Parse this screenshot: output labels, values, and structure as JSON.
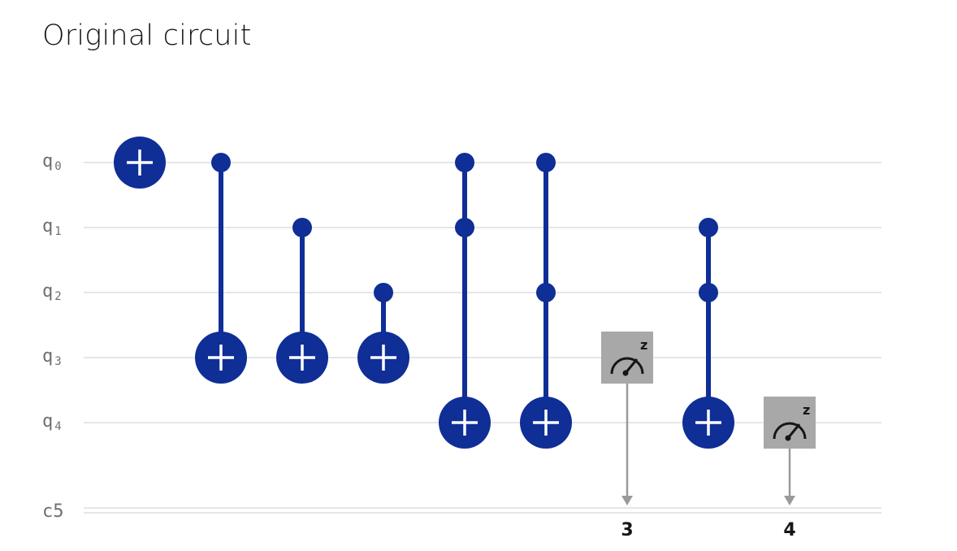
{
  "title": "Original circuit",
  "colors": {
    "gate": "#0f2e96",
    "gate_symbol": "#ffffff",
    "measure_box": "#a8a8a8",
    "measure_arrow": "#9a9a9a",
    "wire": "#dddddd",
    "label": "#6f6f6f"
  },
  "qubits": [
    {
      "prefix": "q",
      "index": "0"
    },
    {
      "prefix": "q",
      "index": "1"
    },
    {
      "prefix": "q",
      "index": "2"
    },
    {
      "prefix": "q",
      "index": "3"
    },
    {
      "prefix": "q",
      "index": "4"
    }
  ],
  "classical_register": {
    "label": "c5"
  },
  "gates": [
    {
      "type": "x",
      "target": 0,
      "controls": []
    },
    {
      "type": "cx",
      "target": 3,
      "controls": [
        0
      ]
    },
    {
      "type": "cx",
      "target": 3,
      "controls": [
        1
      ]
    },
    {
      "type": "cx",
      "target": 3,
      "controls": [
        2
      ]
    },
    {
      "type": "ccx",
      "target": 4,
      "controls": [
        0,
        1
      ]
    },
    {
      "type": "ccx",
      "target": 4,
      "controls": [
        0,
        2
      ]
    },
    {
      "type": "measure",
      "qubit": 3,
      "bit": "3",
      "basis": "z"
    },
    {
      "type": "ccx",
      "target": 4,
      "controls": [
        1,
        2
      ]
    },
    {
      "type": "measure",
      "qubit": 4,
      "bit": "4",
      "basis": "z"
    }
  ]
}
